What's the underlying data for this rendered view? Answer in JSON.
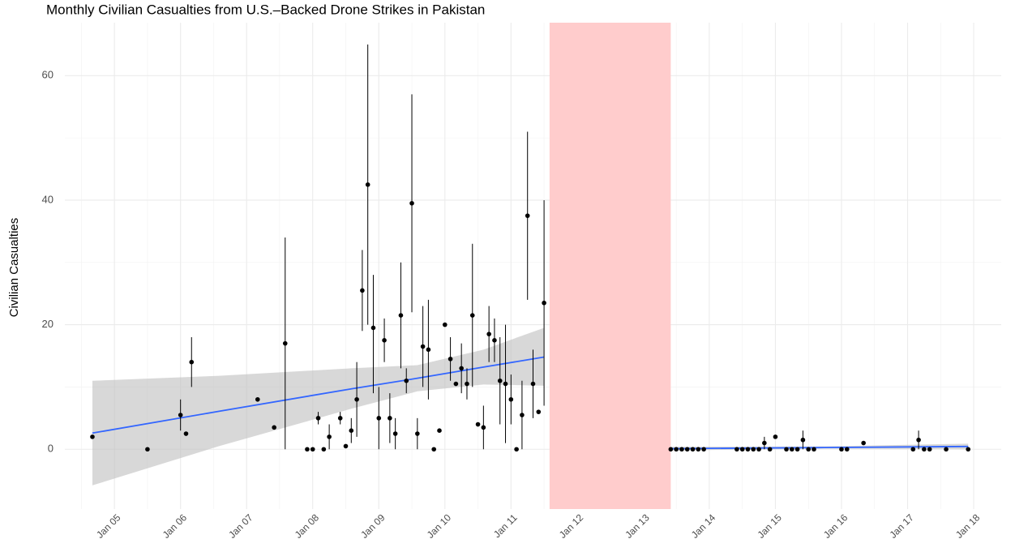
{
  "chart_data": {
    "type": "scatter",
    "title": "Monthly Civilian Casualties from U.S.–Backed Drone Strikes in Pakistan",
    "ylabel": "Civilian Casualties",
    "xlim": [
      "2004-04",
      "2018-06"
    ],
    "ylim": [
      -9.6,
      68.5
    ],
    "xticks": [
      {
        "value": "2005-01",
        "label": "Jan 05"
      },
      {
        "value": "2006-01",
        "label": "Jan 06"
      },
      {
        "value": "2007-01",
        "label": "Jan 07"
      },
      {
        "value": "2008-01",
        "label": "Jan 08"
      },
      {
        "value": "2009-01",
        "label": "Jan 09"
      },
      {
        "value": "2010-01",
        "label": "Jan 10"
      },
      {
        "value": "2011-01",
        "label": "Jan 11"
      },
      {
        "value": "2012-01",
        "label": "Jan 12"
      },
      {
        "value": "2013-01",
        "label": "Jan 13"
      },
      {
        "value": "2014-01",
        "label": "Jan 14"
      },
      {
        "value": "2015-01",
        "label": "Jan 15"
      },
      {
        "value": "2016-01",
        "label": "Jan 16"
      },
      {
        "value": "2017-01",
        "label": "Jan 17"
      },
      {
        "value": "2018-01",
        "label": "Jan 18"
      }
    ],
    "yticks": [
      0,
      20,
      40,
      60
    ],
    "grid": true,
    "shaded_region": {
      "x": [
        "2011-08",
        "2013-06"
      ],
      "color": "#ffcccc"
    },
    "series": [
      {
        "color": "#000000",
        "x": [
          "2004-09",
          "2005-07",
          "2006-01",
          "2006-02",
          "2006-03",
          "2007-03",
          "2007-06",
          "2007-08",
          "2007-12",
          "2008-01",
          "2008-02",
          "2008-03",
          "2008-04",
          "2008-06",
          "2008-07",
          "2008-08",
          "2008-09",
          "2008-10",
          "2008-11",
          "2008-12",
          "2009-01",
          "2009-02",
          "2009-03",
          "2009-04",
          "2009-05",
          "2009-06",
          "2009-07",
          "2009-08",
          "2009-09",
          "2009-10",
          "2009-11",
          "2009-12",
          "2010-01",
          "2010-02",
          "2010-03",
          "2010-04",
          "2010-05",
          "2010-06",
          "2010-07",
          "2010-08",
          "2010-09",
          "2010-10",
          "2010-11",
          "2010-12",
          "2011-01",
          "2011-02",
          "2011-03",
          "2011-04",
          "2011-05",
          "2011-06",
          "2011-07",
          "2013-06",
          "2013-07",
          "2013-08",
          "2013-09",
          "2013-10",
          "2013-11",
          "2013-12",
          "2014-06",
          "2014-07",
          "2014-08",
          "2014-09",
          "2014-10",
          "2014-11",
          "2014-12",
          "2015-01",
          "2015-03",
          "2015-04",
          "2015-05",
          "2015-06",
          "2015-07",
          "2015-08",
          "2016-01",
          "2016-02",
          "2016-05",
          "2017-02",
          "2017-03",
          "2017-04",
          "2017-05",
          "2017-08",
          "2017-12"
        ],
        "values": [
          2,
          0,
          5.5,
          2.5,
          14,
          8,
          3.5,
          17,
          0,
          0,
          5,
          0,
          2,
          5,
          0.5,
          3,
          8,
          25.5,
          42.5,
          19.5,
          5,
          17.5,
          5,
          2.5,
          21.5,
          11,
          39.5,
          2.5,
          16.5,
          16,
          0,
          3,
          20,
          14.5,
          10.5,
          13,
          10.5,
          21.5,
          4,
          3.5,
          18.5,
          17.5,
          11,
          10.5,
          8,
          0,
          5.5,
          37.5,
          10.5,
          6,
          23.5,
          0,
          0,
          0,
          0,
          0,
          0,
          0,
          0,
          0,
          0,
          0,
          0,
          1,
          0,
          2,
          0,
          0,
          0,
          1.5,
          0,
          0,
          0,
          0,
          1,
          0,
          1.5,
          0,
          0,
          0,
          0
        ],
        "low": [
          null,
          null,
          3,
          null,
          10,
          null,
          null,
          0,
          null,
          null,
          4,
          null,
          0,
          4,
          null,
          1,
          2,
          19,
          20,
          9,
          0,
          14,
          1,
          0,
          13,
          9,
          22,
          0,
          10,
          8,
          null,
          null,
          null,
          11,
          null,
          9,
          8,
          10,
          null,
          0,
          14,
          14,
          4,
          1,
          4,
          null,
          0,
          24,
          5,
          null,
          7,
          null,
          null,
          null,
          null,
          null,
          null,
          null,
          null,
          null,
          null,
          null,
          null,
          0,
          null,
          null,
          null,
          null,
          null,
          0,
          null,
          null,
          null,
          null,
          null,
          null,
          0,
          null,
          null,
          null,
          null
        ],
        "high": [
          null,
          null,
          8,
          null,
          18,
          null,
          null,
          34,
          null,
          null,
          6,
          null,
          4,
          6,
          null,
          5,
          14,
          32,
          65,
          28,
          10,
          21,
          9,
          5,
          30,
          13,
          57,
          5,
          23,
          24,
          null,
          null,
          null,
          18,
          null,
          17,
          13,
          33,
          null,
          7,
          23,
          21,
          18,
          20,
          12,
          null,
          11,
          51,
          16,
          null,
          40,
          null,
          null,
          null,
          null,
          null,
          null,
          null,
          null,
          null,
          null,
          null,
          null,
          2,
          null,
          null,
          null,
          null,
          null,
          3,
          null,
          null,
          null,
          null,
          null,
          null,
          3,
          null,
          null,
          null,
          null
        ]
      }
    ],
    "fits": [
      {
        "color": "#3366ff",
        "ribbon_color": "#bebebe",
        "x": [
          "2004-09",
          "2006-08",
          "2008-08",
          "2009-08",
          "2010-08",
          "2011-07"
        ],
        "values": [
          2.6,
          6.1,
          9.7,
          11.4,
          13.2,
          14.8
        ],
        "low": [
          -5.8,
          0.5,
          6.5,
          9.3,
          10.4,
          10.2
        ],
        "high": [
          11,
          11.8,
          13,
          13.5,
          16,
          19.5
        ]
      },
      {
        "color": "#3366ff",
        "ribbon_color": "#bebebe",
        "x": [
          "2013-06",
          "2015-09",
          "2017-12"
        ],
        "values": [
          0.1,
          0.27,
          0.45
        ],
        "low": [
          -0.2,
          0.1,
          0
        ],
        "high": [
          0.4,
          0.45,
          0.9
        ]
      }
    ]
  }
}
